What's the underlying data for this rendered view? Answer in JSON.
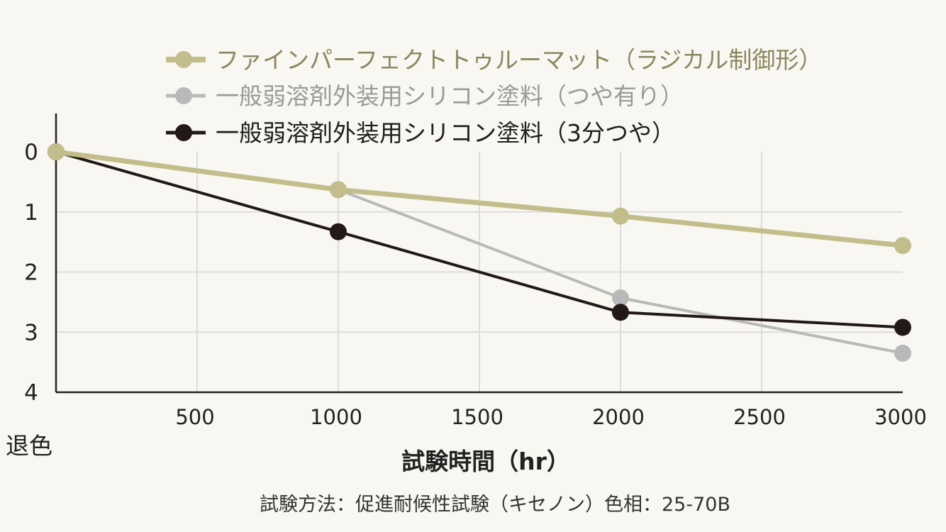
{
  "chart_data": {
    "type": "line",
    "title": "",
    "xlabel": "試験時間（hr）",
    "ylabel": "退色",
    "note": "試験方法：促進耐候性試験（キセノン）色相：25-70B",
    "xlim": [
      0,
      3000
    ],
    "ylim": [
      0,
      4
    ],
    "y_inverted": true,
    "grid": true,
    "x_ticks": [
      500,
      1000,
      1500,
      2000,
      2500,
      3000
    ],
    "y_ticks": [
      0,
      1,
      2,
      3,
      4
    ],
    "legend_position": "top",
    "series": [
      {
        "name": "ファインパーフェクトトゥルーマット（ラジカル制御形）",
        "color": "#c3bd8b",
        "x": [
          0,
          1000,
          2000,
          3000
        ],
        "y": [
          0,
          0.63,
          1.07,
          1.56
        ]
      },
      {
        "name": "一般弱溶剤外装用シリコン塗料（つや有り）",
        "color": "#b9b9b9",
        "x": [
          0,
          1000,
          2000,
          3000
        ],
        "y": [
          0,
          0.63,
          2.43,
          3.35
        ]
      },
      {
        "name": "一般弱溶剤外装用シリコン塗料（3分つや）",
        "color": "#221815",
        "x": [
          0,
          1000,
          2000,
          3000
        ],
        "y": [
          0,
          1.33,
          2.67,
          2.92
        ]
      }
    ]
  }
}
